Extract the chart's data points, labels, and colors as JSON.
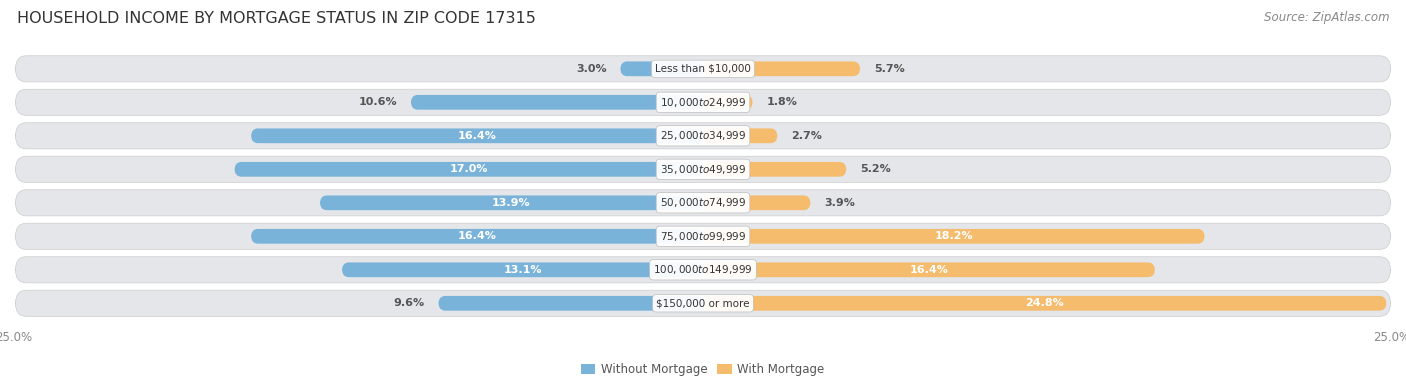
{
  "title": "HOUSEHOLD INCOME BY MORTGAGE STATUS IN ZIP CODE 17315",
  "source": "Source: ZipAtlas.com",
  "categories": [
    "Less than $10,000",
    "$10,000 to $24,999",
    "$25,000 to $34,999",
    "$35,000 to $49,999",
    "$50,000 to $74,999",
    "$75,000 to $99,999",
    "$100,000 to $149,999",
    "$150,000 or more"
  ],
  "without_mortgage": [
    3.0,
    10.6,
    16.4,
    17.0,
    13.9,
    16.4,
    13.1,
    9.6
  ],
  "with_mortgage": [
    5.7,
    1.8,
    2.7,
    5.2,
    3.9,
    18.2,
    16.4,
    24.8
  ],
  "color_without": "#7ab3d9",
  "color_with": "#f5bc6e",
  "color_row_bg": "#e4e6e9",
  "label_color_dark": "#555555",
  "label_color_white": "#ffffff",
  "title_fontsize": 11.5,
  "source_fontsize": 8.5,
  "label_fontsize": 8,
  "category_fontsize": 7.5,
  "legend_fontsize": 8.5,
  "axis_label_fontsize": 8.5,
  "axis_max": 25.0,
  "white_threshold": 12.0
}
